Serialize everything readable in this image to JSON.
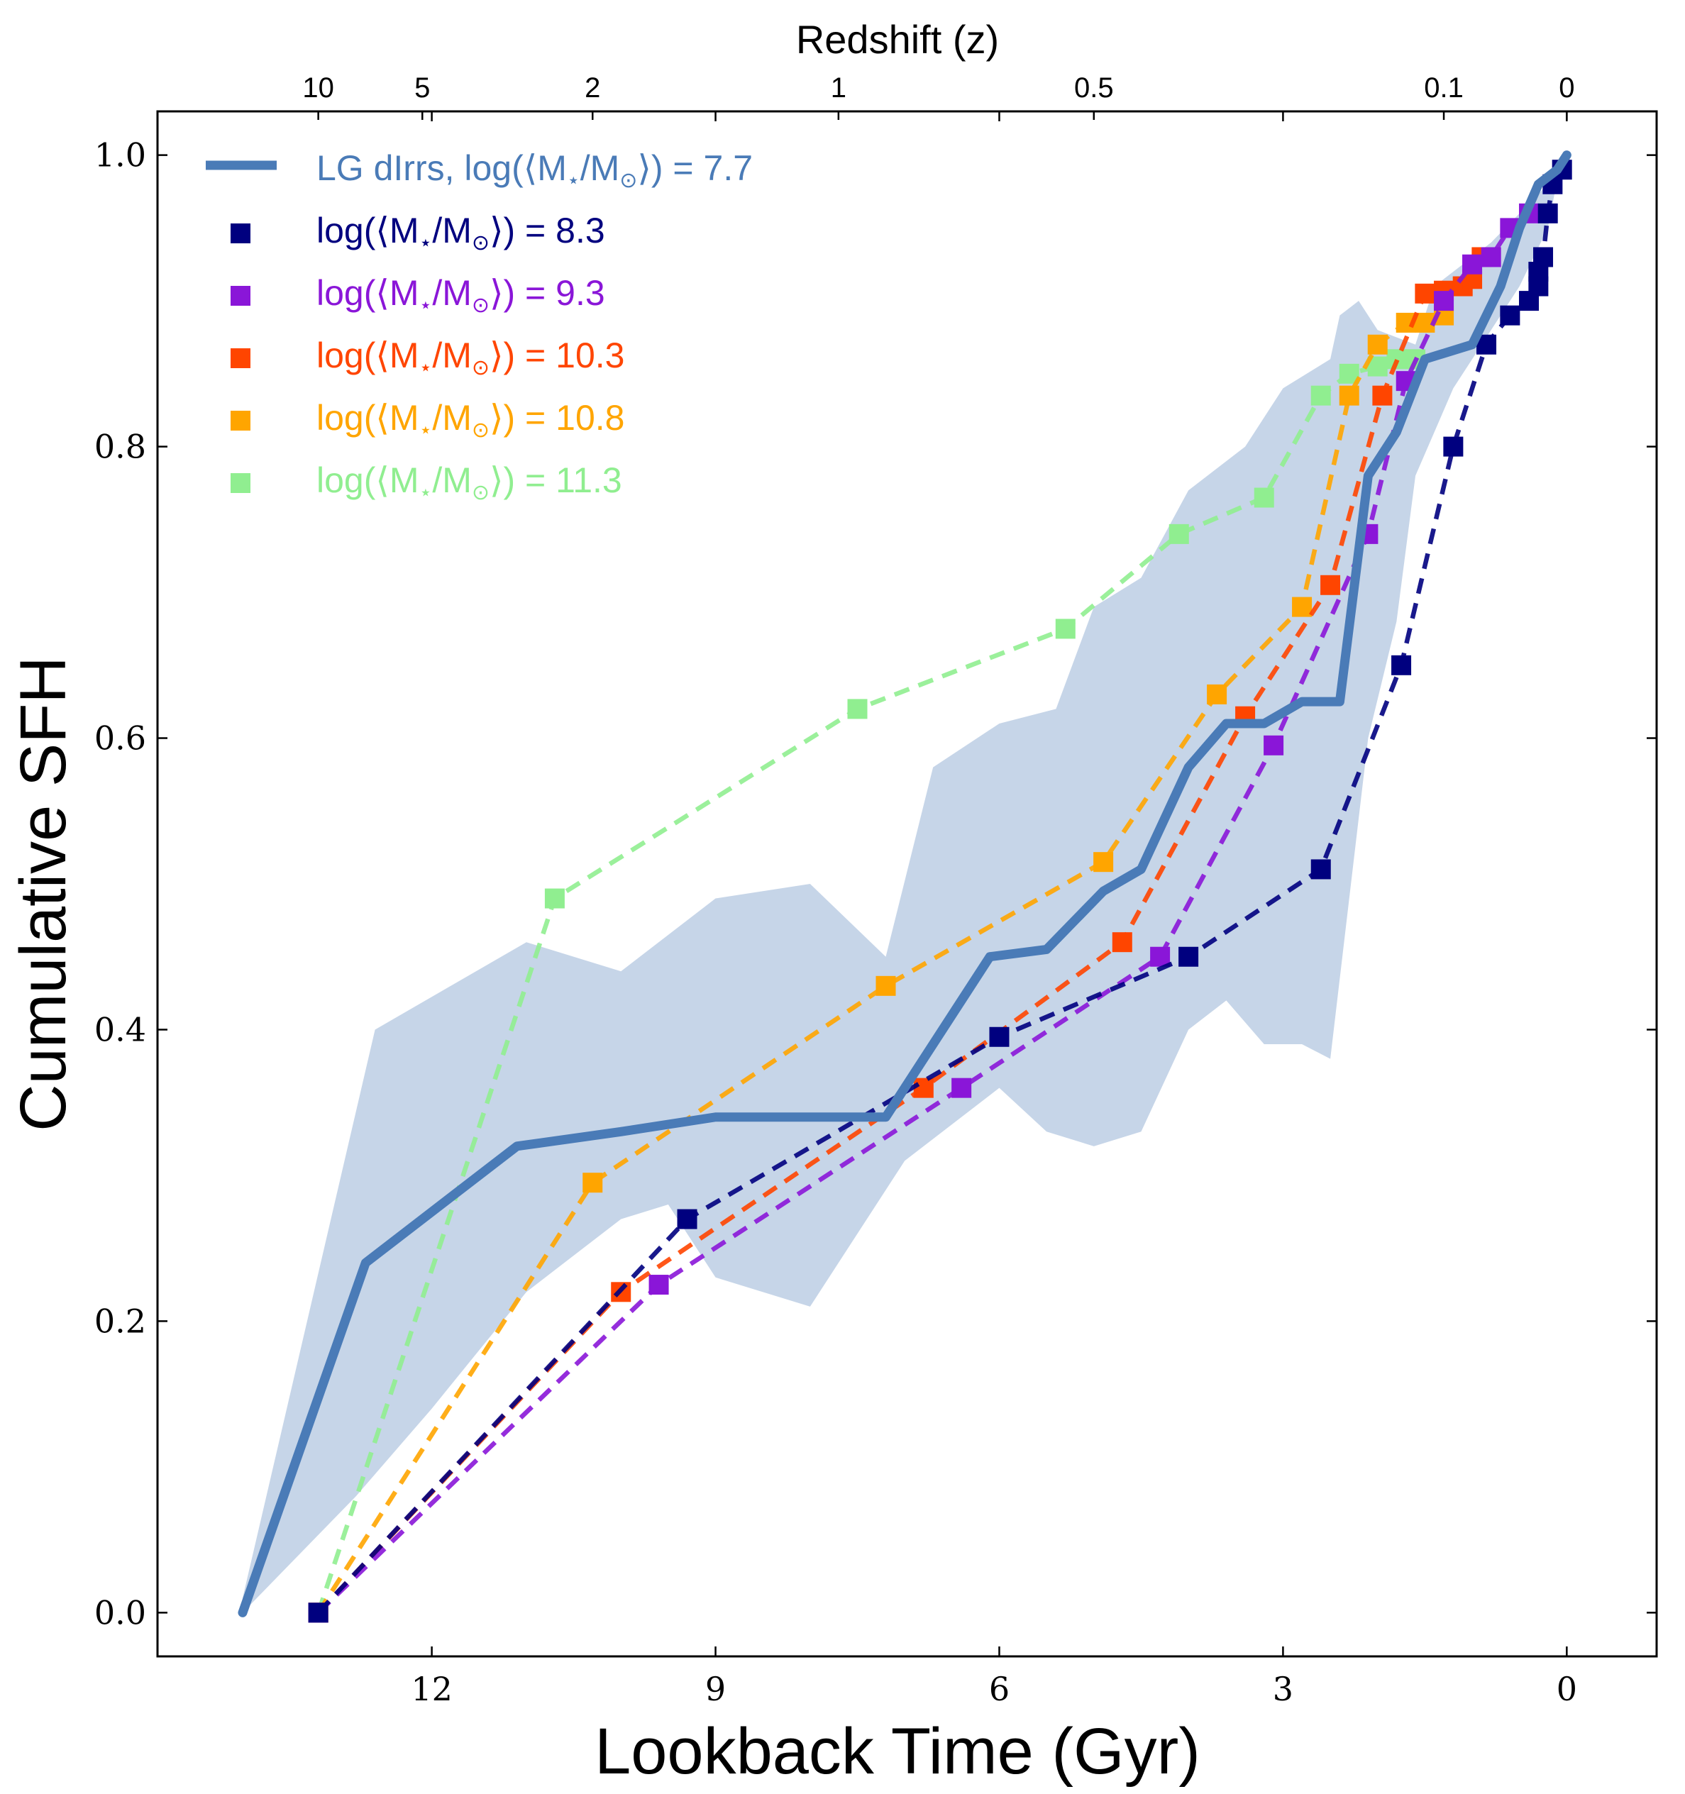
{
  "chart_data": {
    "type": "line",
    "xlabel": "Lookback Time (Gyr)",
    "ylabel": "Cumulative SFH",
    "top_axis_label": "Redshift (z)",
    "xlim": [
      14.9,
      -0.95
    ],
    "ylim": [
      -0.03,
      1.03
    ],
    "x_ticks": [
      12,
      9,
      6,
      3,
      0
    ],
    "y_ticks": [
      0.0,
      0.2,
      0.4,
      0.6,
      0.8,
      1.0
    ],
    "x_tick_labels": [
      "12",
      "9",
      "6",
      "3",
      "0"
    ],
    "y_tick_labels": [
      "0.0",
      "0.2",
      "0.4",
      "0.6",
      "0.8",
      "1.0"
    ],
    "top_ticks": [
      {
        "label": "10",
        "x": 13.2
      },
      {
        "label": "5",
        "x": 12.1
      },
      {
        "label": "2",
        "x": 10.3
      },
      {
        "label": "1",
        "x": 7.7
      },
      {
        "label": "0.5",
        "x": 5.0
      },
      {
        "label": "0.1",
        "x": 1.3
      },
      {
        "label": "0",
        "x": 0.0
      }
    ],
    "band": {
      "name": "LG dIrrs spread",
      "color": "#c6d5e8",
      "upper": [
        [
          14.0,
          0.01
        ],
        [
          12.6,
          0.4
        ],
        [
          11.0,
          0.46
        ],
        [
          10.0,
          0.44
        ],
        [
          9.0,
          0.49
        ],
        [
          8.0,
          0.5
        ],
        [
          7.2,
          0.45
        ],
        [
          6.7,
          0.58
        ],
        [
          6.0,
          0.61
        ],
        [
          5.4,
          0.62
        ],
        [
          5.0,
          0.69
        ],
        [
          4.5,
          0.71
        ],
        [
          4.0,
          0.77
        ],
        [
          3.4,
          0.8
        ],
        [
          3.0,
          0.84
        ],
        [
          2.5,
          0.86
        ],
        [
          2.4,
          0.89
        ],
        [
          2.2,
          0.9
        ],
        [
          2.0,
          0.88
        ],
        [
          1.6,
          0.87
        ],
        [
          1.4,
          0.91
        ],
        [
          1.2,
          0.92
        ],
        [
          0.8,
          0.94
        ],
        [
          0.5,
          0.96
        ],
        [
          0.2,
          0.98
        ],
        [
          0.05,
          1.0
        ]
      ],
      "lower": [
        [
          0.05,
          1.0
        ],
        [
          0.2,
          0.95
        ],
        [
          0.5,
          0.91
        ],
        [
          0.8,
          0.88
        ],
        [
          1.2,
          0.84
        ],
        [
          1.6,
          0.78
        ],
        [
          1.8,
          0.68
        ],
        [
          2.1,
          0.6
        ],
        [
          2.5,
          0.38
        ],
        [
          2.8,
          0.39
        ],
        [
          3.2,
          0.39
        ],
        [
          3.6,
          0.42
        ],
        [
          4.0,
          0.4
        ],
        [
          4.5,
          0.33
        ],
        [
          5.0,
          0.32
        ],
        [
          5.5,
          0.33
        ],
        [
          6.0,
          0.36
        ],
        [
          7.0,
          0.31
        ],
        [
          8.0,
          0.21
        ],
        [
          9.0,
          0.23
        ],
        [
          9.5,
          0.28
        ],
        [
          10.0,
          0.27
        ],
        [
          11.0,
          0.22
        ],
        [
          12.0,
          0.14
        ],
        [
          12.8,
          0.08
        ],
        [
          14.0,
          0.0
        ]
      ]
    },
    "series": [
      {
        "name": "LG dIrrs, log(⟨M⋆/M⊙⟩) = 7.7",
        "style": "solid",
        "color": "#4a7bb7",
        "points": [
          [
            14.0,
            0.0
          ],
          [
            12.7,
            0.24
          ],
          [
            11.1,
            0.32
          ],
          [
            10.0,
            0.33
          ],
          [
            9.0,
            0.34
          ],
          [
            7.2,
            0.34
          ],
          [
            6.1,
            0.45
          ],
          [
            5.5,
            0.455
          ],
          [
            4.9,
            0.495
          ],
          [
            4.5,
            0.51
          ],
          [
            4.0,
            0.58
          ],
          [
            3.6,
            0.61
          ],
          [
            3.2,
            0.61
          ],
          [
            2.8,
            0.625
          ],
          [
            2.4,
            0.625
          ],
          [
            2.1,
            0.78
          ],
          [
            1.8,
            0.81
          ],
          [
            1.5,
            0.86
          ],
          [
            1.0,
            0.87
          ],
          [
            0.7,
            0.91
          ],
          [
            0.5,
            0.95
          ],
          [
            0.3,
            0.98
          ],
          [
            0.1,
            0.99
          ],
          [
            0.0,
            1.0
          ]
        ]
      },
      {
        "name": "log(⟨M⋆/M⊙⟩) = 8.3",
        "style": "dashed",
        "color": "#00007f",
        "points": [
          [
            13.2,
            0.0
          ],
          [
            9.3,
            0.27
          ],
          [
            6.0,
            0.395
          ],
          [
            4.0,
            0.45
          ],
          [
            2.6,
            0.51
          ],
          [
            1.75,
            0.65
          ],
          [
            1.2,
            0.8
          ],
          [
            0.85,
            0.87
          ],
          [
            0.6,
            0.89
          ],
          [
            0.4,
            0.9
          ],
          [
            0.3,
            0.91
          ],
          [
            0.3,
            0.92
          ],
          [
            0.25,
            0.93
          ],
          [
            0.2,
            0.96
          ],
          [
            0.15,
            0.98
          ],
          [
            0.05,
            0.99
          ]
        ]
      },
      {
        "name": "log(⟨M⋆/M⊙⟩) = 9.3",
        "style": "dashed",
        "color": "#8a16d8",
        "points": [
          [
            13.2,
            0.0
          ],
          [
            9.6,
            0.225
          ],
          [
            6.4,
            0.36
          ],
          [
            4.3,
            0.45
          ],
          [
            3.1,
            0.595
          ],
          [
            2.1,
            0.74
          ],
          [
            1.7,
            0.845
          ],
          [
            1.3,
            0.9
          ],
          [
            1.0,
            0.925
          ],
          [
            0.8,
            0.93
          ],
          [
            0.6,
            0.95
          ],
          [
            0.4,
            0.96
          ]
        ]
      },
      {
        "name": "log(⟨M⋆/M⊙⟩) = 10.3",
        "style": "dashed",
        "color": "#ff4500",
        "points": [
          [
            13.2,
            0.0
          ],
          [
            10.0,
            0.22
          ],
          [
            6.8,
            0.36
          ],
          [
            4.7,
            0.46
          ],
          [
            3.4,
            0.615
          ],
          [
            2.5,
            0.705
          ],
          [
            1.95,
            0.835
          ],
          [
            1.5,
            0.905
          ],
          [
            1.3,
            0.907
          ],
          [
            1.1,
            0.91
          ],
          [
            1.0,
            0.915
          ],
          [
            0.9,
            0.93
          ]
        ]
      },
      {
        "name": "log(⟨M⋆/M⊙⟩) = 10.8",
        "style": "dashed",
        "color": "#ffa500",
        "points": [
          [
            13.2,
            0.0
          ],
          [
            10.3,
            0.295
          ],
          [
            7.2,
            0.43
          ],
          [
            4.9,
            0.515
          ],
          [
            3.7,
            0.63
          ],
          [
            2.8,
            0.69
          ],
          [
            2.3,
            0.835
          ],
          [
            2.0,
            0.87
          ],
          [
            1.7,
            0.885
          ],
          [
            1.5,
            0.885
          ],
          [
            1.3,
            0.89
          ]
        ]
      },
      {
        "name": "log(⟨M⋆/M⊙⟩) = 11.3",
        "style": "dashed",
        "color": "#90ee90",
        "points": [
          [
            13.2,
            0.0
          ],
          [
            10.7,
            0.49
          ],
          [
            7.5,
            0.62
          ],
          [
            5.3,
            0.675
          ],
          [
            4.1,
            0.74
          ],
          [
            3.2,
            0.765
          ],
          [
            2.6,
            0.835
          ],
          [
            2.3,
            0.85
          ],
          [
            2.0,
            0.855
          ],
          [
            1.8,
            0.86
          ],
          [
            1.6,
            0.86
          ]
        ]
      }
    ]
  },
  "legend": [
    {
      "label": "LG dIrrs, log(⟨M",
      "sub": "⋆",
      "mid": "/M",
      "sub2": "⊙",
      "tail": "⟩) = 7.7"
    },
    {
      "label": "log(⟨M",
      "sub": "⋆",
      "mid": "/M",
      "sub2": "⊙",
      "tail": "⟩) = 8.3"
    },
    {
      "label": "log(⟨M",
      "sub": "⋆",
      "mid": "/M",
      "sub2": "⊙",
      "tail": "⟩) = 9.3"
    },
    {
      "label": "log(⟨M",
      "sub": "⋆",
      "mid": "/M",
      "sub2": "⊙",
      "tail": "⟩) = 10.3"
    },
    {
      "label": "log(⟨M",
      "sub": "⋆",
      "mid": "/M",
      "sub2": "⊙",
      "tail": "⟩) = 10.8"
    },
    {
      "label": "log(⟨M",
      "sub": "⋆",
      "mid": "/M",
      "sub2": "⊙",
      "tail": "⟩) = 11.3"
    }
  ]
}
